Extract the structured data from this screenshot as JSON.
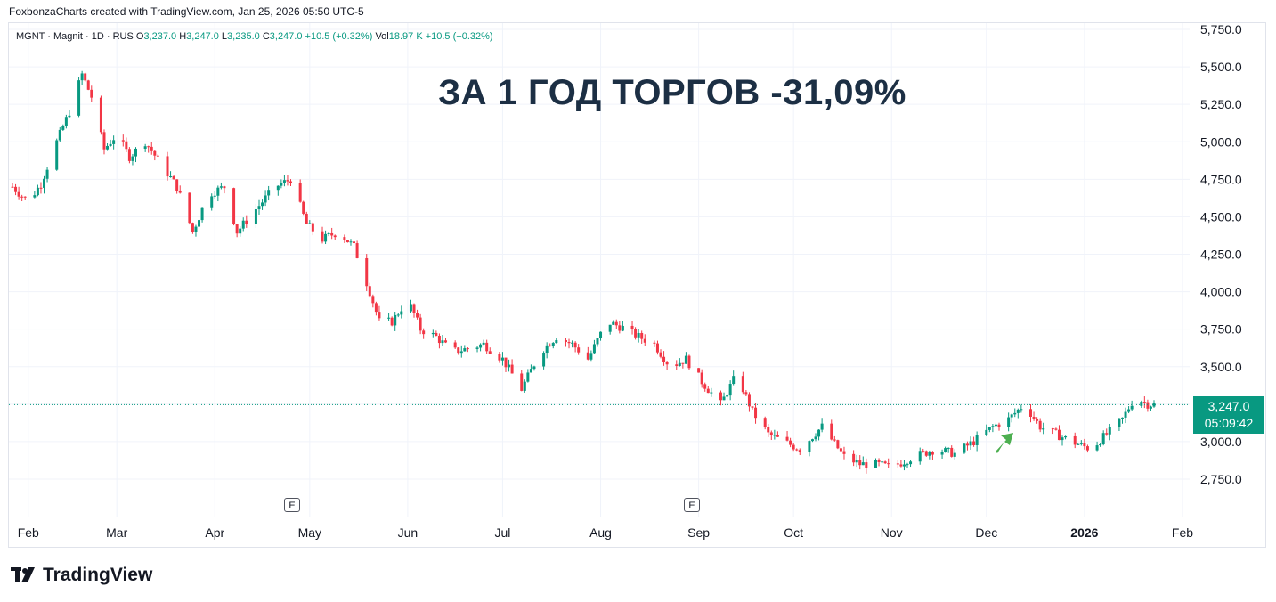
{
  "header": {
    "text": "FoxbonzaCharts created with TradingView.com, Jan 25, 2026 05:50 UTC-5"
  },
  "legend": {
    "symbol": "MGNT · Magnit · 1D · RUS",
    "o_label": "O",
    "o_value": "3,237.0",
    "h_label": "H",
    "h_value": "3,247.0",
    "l_label": "L",
    "l_value": "3,235.0",
    "c_label": "C",
    "c_value": "3,247.0",
    "change": "+10.5 (+0.32%)",
    "vol_label": "Vol",
    "vol_value": "18.97 K",
    "vol_change": "+10.5 (+0.32%)"
  },
  "headline": "ЗА 1 ГОД ТОРГОВ -31,09%",
  "price_label": {
    "price": "3,247.0",
    "countdown": "05:09:42"
  },
  "earnings_markers": [
    {
      "label": "E"
    },
    {
      "label": "E"
    }
  ],
  "brand": {
    "name": "TradingView"
  },
  "colors": {
    "up": "#089981",
    "down": "#f23645",
    "grid": "#f0f3fa",
    "arrow": "#4caf50"
  },
  "chart_data": {
    "type": "line",
    "subtype": "candlestick",
    "title": "",
    "xlabel": "",
    "ylabel": "",
    "ylim": [
      2650,
      5800
    ],
    "y_ticks": [
      "5,750.0",
      "5,500.0",
      "5,250.0",
      "5,000.0",
      "4,750.0",
      "4,500.0",
      "4,250.0",
      "4,000.0",
      "3,750.0",
      "3,500.0",
      "3,250.0",
      "3,000.0",
      "2,750.0"
    ],
    "x_ticks": [
      "Feb",
      "Mar",
      "Apr",
      "May",
      "Jun",
      "Jul",
      "Aug",
      "Sep",
      "Oct",
      "Nov",
      "Dec",
      "2026",
      "Feb"
    ],
    "grid": true,
    "last_price": 3247.0,
    "annotation": "green arrow near start of December",
    "series": [
      {
        "x": [
          "2025-01-27",
          "2025-02-01",
          "2025-02-05",
          "2025-02-10",
          "2025-02-14",
          "2025-02-18",
          "2025-02-21",
          "2025-02-25",
          "2025-03-01",
          "2025-03-05",
          "2025-03-10",
          "2025-03-15",
          "2025-03-20",
          "2025-03-25",
          "2025-03-30",
          "2025-04-04",
          "2025-04-08",
          "2025-04-12",
          "2025-04-16",
          "2025-04-20",
          "2025-04-25",
          "2025-04-30",
          "2025-05-05",
          "2025-05-10",
          "2025-05-15",
          "2025-05-20",
          "2025-05-23",
          "2025-05-27",
          "2025-06-01",
          "2025-06-05",
          "2025-06-10",
          "2025-06-15",
          "2025-06-20",
          "2025-06-25",
          "2025-07-01",
          "2025-07-07",
          "2025-07-13",
          "2025-07-18",
          "2025-07-23",
          "2025-07-28",
          "2025-08-03",
          "2025-08-08",
          "2025-08-13",
          "2025-08-18",
          "2025-08-23",
          "2025-08-28",
          "2025-09-02",
          "2025-09-08",
          "2025-09-13",
          "2025-09-18",
          "2025-09-23",
          "2025-09-28",
          "2025-10-03",
          "2025-10-10",
          "2025-10-17",
          "2025-10-22",
          "2025-10-27",
          "2025-11-01",
          "2025-11-08",
          "2025-11-15",
          "2025-11-21",
          "2025-11-27",
          "2025-12-03",
          "2025-12-08",
          "2025-12-13",
          "2025-12-18",
          "2025-12-23",
          "2025-12-28",
          "2026-01-03",
          "2026-01-08",
          "2026-01-13",
          "2026-01-17",
          "2026-01-21",
          "2026-01-23"
        ],
        "close": [
          4700,
          4600,
          4720,
          5000,
          5200,
          5450,
          5300,
          4950,
          5050,
          4900,
          5000,
          4850,
          4700,
          4400,
          4650,
          4700,
          4400,
          4500,
          4600,
          4700,
          4750,
          4450,
          4350,
          4400,
          4300,
          4000,
          3800,
          3800,
          3950,
          3750,
          3700,
          3600,
          3620,
          3650,
          3550,
          3350,
          3600,
          3700,
          3650,
          3550,
          3800,
          3760,
          3700,
          3650,
          3500,
          3550,
          3400,
          3250,
          3450,
          3200,
          3050,
          3000,
          2950,
          3100,
          2900,
          2850,
          2850,
          2830,
          2900,
          2950,
          2920,
          3000,
          3100,
          3150,
          3250,
          3100,
          3050,
          3000,
          2950,
          3050,
          3150,
          3300,
          3250,
          3247
        ]
      }
    ]
  }
}
